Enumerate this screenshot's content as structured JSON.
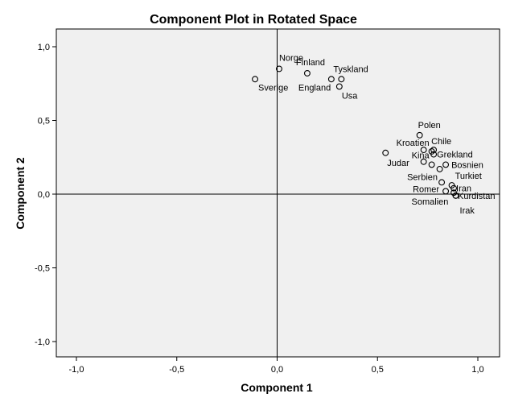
{
  "chart_data": {
    "type": "scatter",
    "title": "Component Plot in Rotated Space",
    "xlabel": "Component 1",
    "ylabel": "Component 2",
    "xlim": [
      -1.0,
      1.0
    ],
    "ylim": [
      -1.0,
      1.0
    ],
    "x_ticks": [
      "-1,0",
      "-0,5",
      "0,0",
      "0,5",
      "1,0"
    ],
    "y_ticks": [
      "-1,0",
      "-0,5",
      "0,0",
      "0,5",
      "1,0"
    ],
    "grid": false,
    "background_color": "#f0f0f0",
    "marker_color": "#000000",
    "points": [
      {
        "label": "Norge",
        "x": 0.01,
        "y": 0.85
      },
      {
        "label": "Finland",
        "x": 0.15,
        "y": 0.82
      },
      {
        "label": "Sverige",
        "x": -0.11,
        "y": 0.78
      },
      {
        "label": "England",
        "x": 0.27,
        "y": 0.78
      },
      {
        "label": "Tyskland",
        "x": 0.32,
        "y": 0.78
      },
      {
        "label": "Usa",
        "x": 0.31,
        "y": 0.73
      },
      {
        "label": "Polen",
        "x": 0.71,
        "y": 0.4
      },
      {
        "label": "Kroatien",
        "x": 0.73,
        "y": 0.3
      },
      {
        "label": "Chile",
        "x": 0.78,
        "y": 0.3
      },
      {
        "label": "",
        "x": 0.77,
        "y": 0.29
      },
      {
        "label": "Grekland",
        "x": 0.78,
        "y": 0.27
      },
      {
        "label": "Judar",
        "x": 0.54,
        "y": 0.28
      },
      {
        "label": "Kina",
        "x": 0.73,
        "y": 0.22
      },
      {
        "label": "",
        "x": 0.77,
        "y": 0.2
      },
      {
        "label": "Bosnien",
        "x": 0.84,
        "y": 0.2
      },
      {
        "label": "",
        "x": 0.81,
        "y": 0.17
      },
      {
        "label": "Serbien",
        "x": 0.82,
        "y": 0.08
      },
      {
        "label": "Turkiet",
        "x": 0.87,
        "y": 0.06
      },
      {
        "label": "Iran",
        "x": 0.88,
        "y": 0.04
      },
      {
        "label": "Romer",
        "x": 0.84,
        "y": 0.02
      },
      {
        "label": "Kurdistan",
        "x": 0.88,
        "y": 0.01
      },
      {
        "label": "Somalien",
        "x": 0.89,
        "y": -0.01
      },
      {
        "label": "Irak",
        "x": 0.89,
        "y": -0.01
      }
    ]
  }
}
